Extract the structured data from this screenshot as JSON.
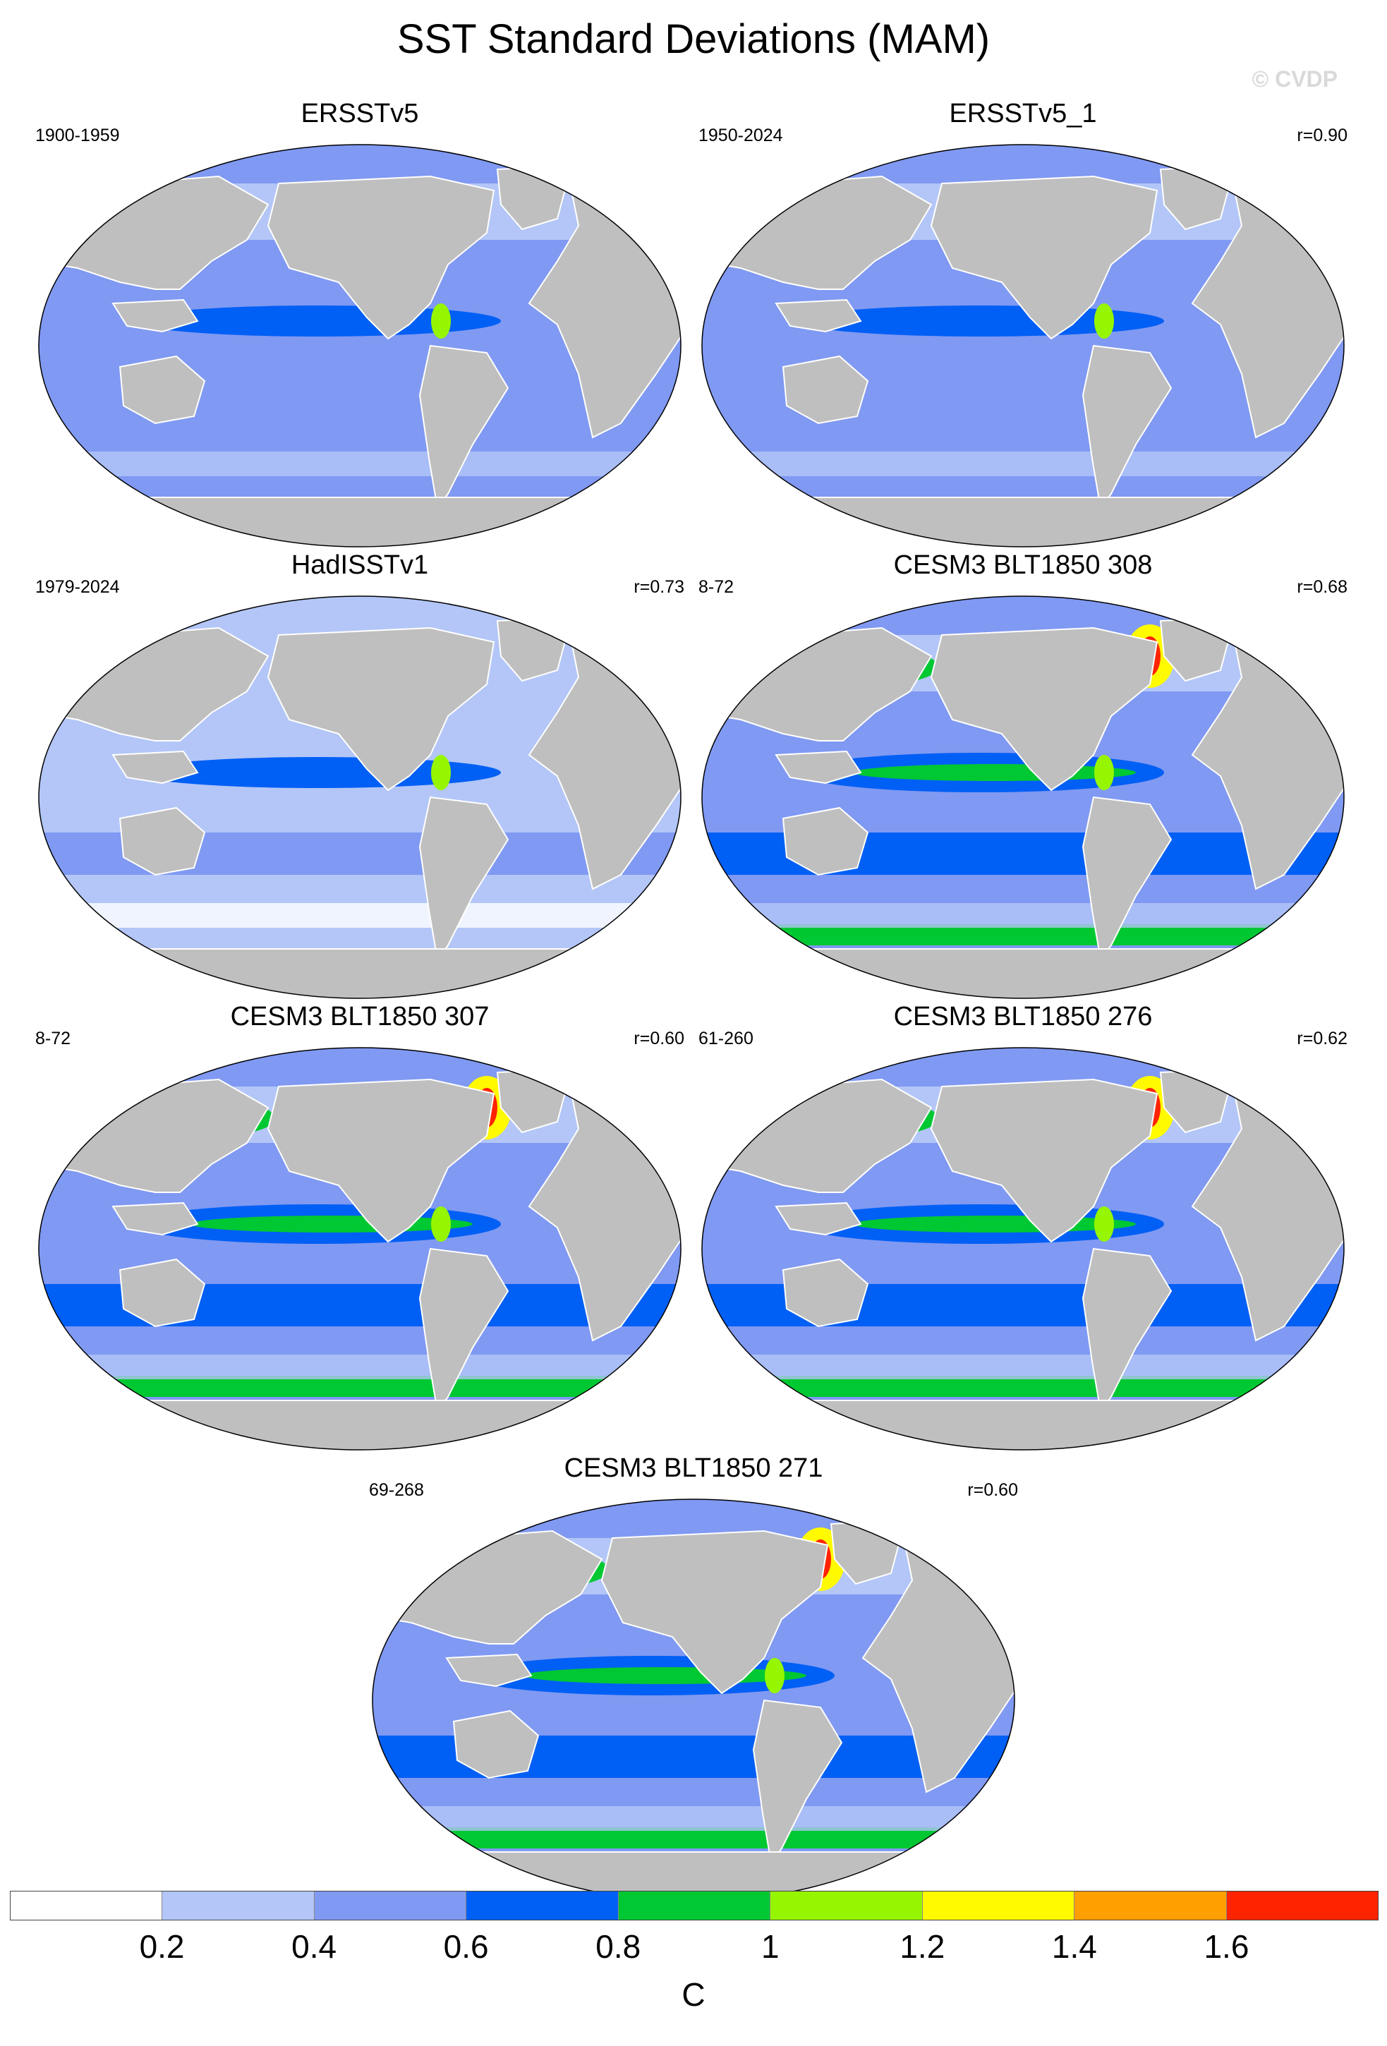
{
  "figure": {
    "title": "SST Standard Deviations (MAM)",
    "watermark": "© CVDP"
  },
  "panels": [
    {
      "title": "ERSSTv5",
      "period": "1900-1959",
      "corr": ""
    },
    {
      "title": "ERSSTv5_1",
      "period": "1950-2024",
      "corr": "r=0.90"
    },
    {
      "title": "HadISSTv1",
      "period": "1979-2024",
      "corr": "r=0.73"
    },
    {
      "title": "CESM3 BLT1850 308",
      "period": "8-72",
      "corr": "r=0.68"
    },
    {
      "title": "CESM3 BLT1850 307",
      "period": "8-72",
      "corr": "r=0.60"
    },
    {
      "title": "CESM3 BLT1850 276",
      "period": "61-260",
      "corr": "r=0.62"
    },
    {
      "title": "CESM3 BLT1850 271",
      "period": "69-268",
      "corr": "r=0.60"
    }
  ],
  "colorbar": {
    "colors": [
      "#ffffff",
      "#b3c6f7",
      "#8099f2",
      "#005ff5",
      "#00c832",
      "#96f500",
      "#fffa00",
      "#ff9f00",
      "#ff2400"
    ],
    "labels": [
      "0.2",
      "0.4",
      "0.6",
      "0.8",
      "1",
      "1.2",
      "1.4",
      "1.6"
    ],
    "unit": "C"
  }
}
